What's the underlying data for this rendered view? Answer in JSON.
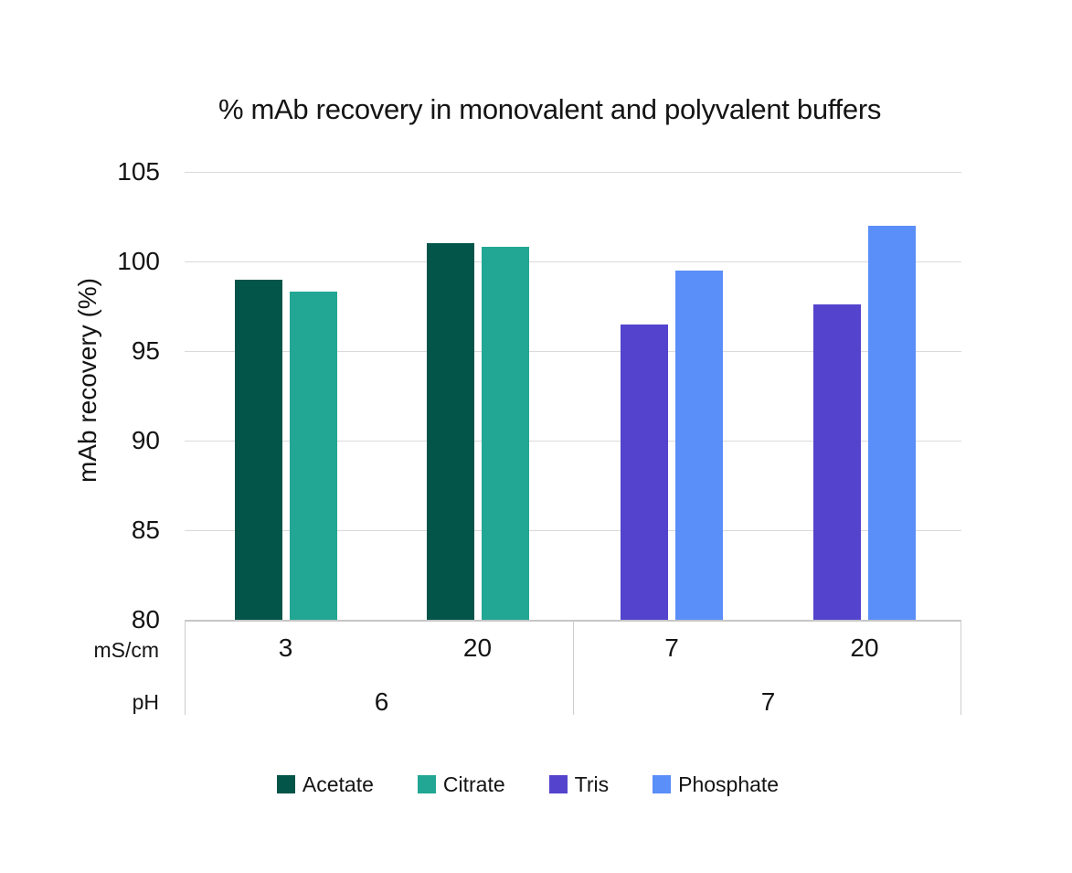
{
  "chart_data": {
    "type": "bar",
    "title": "% mAb recovery in monovalent and polyvalent buffers",
    "ylabel": "mAb recovery (%)",
    "ylim": [
      80,
      105
    ],
    "yticks": [
      105,
      100,
      95,
      90,
      85,
      80
    ],
    "grid": "horizontal",
    "legend_position": "bottom",
    "x_axis": {
      "row_labels": [
        "mS/cm",
        "pH"
      ],
      "group_labels_mscm": [
        "3",
        "20",
        "7",
        "20"
      ],
      "ph_spans": [
        {
          "label": "6",
          "groups": [
            0,
            1
          ]
        },
        {
          "label": "7",
          "groups": [
            2,
            3
          ]
        }
      ]
    },
    "series": [
      {
        "name": "Acetate",
        "color": "#035449",
        "values": [
          99.0,
          101.0,
          null,
          null
        ]
      },
      {
        "name": "Citrate",
        "color": "#21A793",
        "values": [
          98.3,
          100.8,
          null,
          null
        ]
      },
      {
        "name": "Tris",
        "color": "#5443CC",
        "values": [
          null,
          null,
          96.5,
          97.6
        ]
      },
      {
        "name": "Phosphate",
        "color": "#5A8EF8",
        "values": [
          null,
          null,
          99.5,
          102.0
        ]
      }
    ],
    "colors": {
      "text": "#141414",
      "gridline": "#dadada",
      "axis_border": "#cccccc",
      "background": "#ffffff"
    }
  }
}
